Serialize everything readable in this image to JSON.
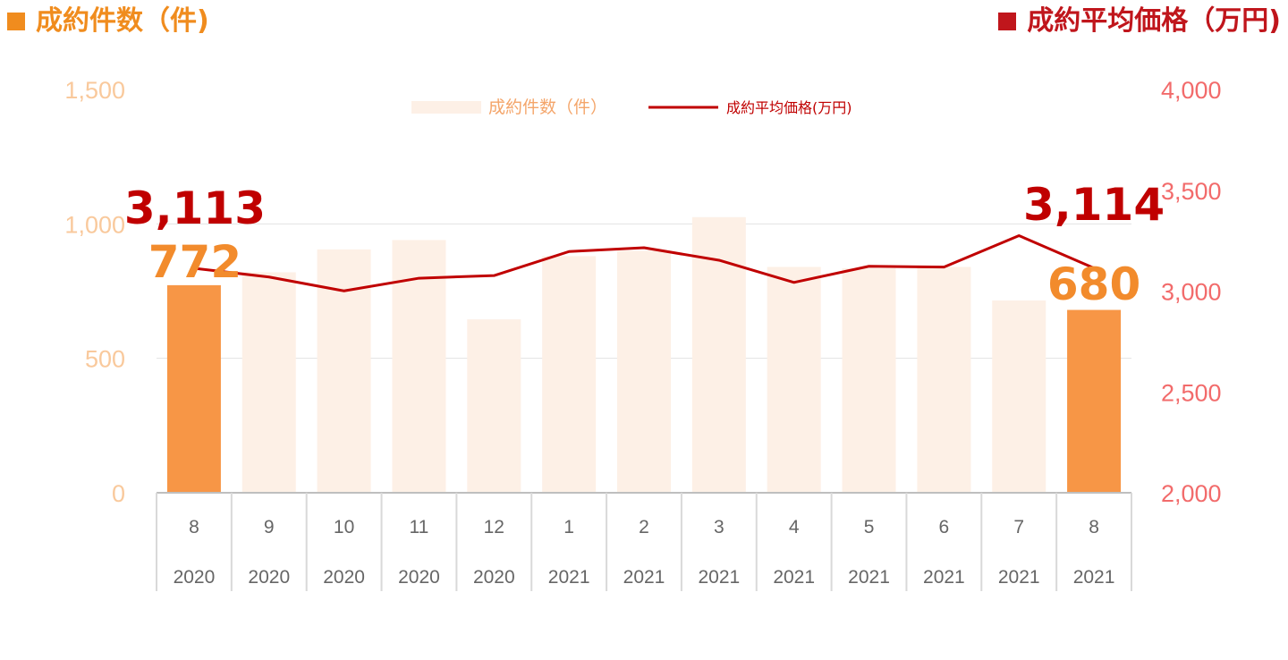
{
  "titles": {
    "left": "成約件数（件)",
    "right": "成約平均価格（万円)"
  },
  "colors": {
    "bar_highlight": "#f79646",
    "bar_faded": "#fdf0e6",
    "line": "#c00000",
    "left_title": "#f08c1e",
    "right_title": "#c0161c"
  },
  "chart_data": {
    "type": "bar",
    "categories": [
      "8",
      "9",
      "10",
      "11",
      "12",
      "1",
      "2",
      "3",
      "4",
      "5",
      "6",
      "7",
      "8"
    ],
    "years": [
      "2020",
      "2020",
      "2020",
      "2020",
      "2020",
      "2021",
      "2021",
      "2021",
      "2021",
      "2021",
      "2021",
      "2021",
      "2021"
    ],
    "series": [
      {
        "name": "成約件数（件）",
        "type": "bar",
        "axis": "left",
        "values": [
          772,
          820,
          905,
          940,
          645,
          880,
          900,
          1025,
          840,
          835,
          840,
          715,
          680
        ],
        "highlight": [
          true,
          false,
          false,
          false,
          false,
          false,
          false,
          false,
          false,
          false,
          false,
          false,
          true
        ]
      },
      {
        "name": "成約平均価格(万円)",
        "type": "line",
        "axis": "right",
        "values": [
          3113,
          3070,
          3001,
          3064,
          3077,
          3196,
          3215,
          3153,
          3043,
          3123,
          3119,
          3275,
          3114
        ]
      }
    ],
    "y_left": {
      "range": [
        0,
        1500
      ],
      "ticks": [
        "0",
        "500",
        "1,000",
        "1,500"
      ],
      "tick_values": [
        0,
        500,
        1000,
        1500
      ]
    },
    "y_right": {
      "range": [
        2000,
        4000
      ],
      "ticks": [
        "2,000",
        "2,500",
        "3,000",
        "3,500",
        "4,000"
      ],
      "tick_values": [
        2000,
        2500,
        3000,
        3500,
        4000
      ]
    },
    "grid": true,
    "legend": "top-center",
    "annotations": {
      "first_price": "3,113",
      "last_price": "3,114",
      "first_count": "772",
      "last_count": "680"
    }
  }
}
